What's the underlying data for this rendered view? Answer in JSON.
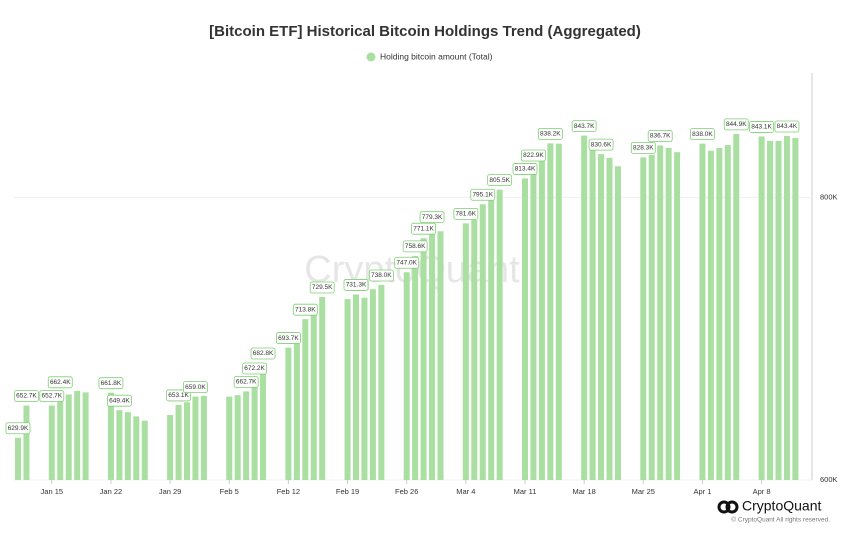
{
  "chart_data": {
    "type": "bar",
    "title": "[Bitcoin ETF] Historical Bitcoin Holdings Trend (Aggregated)",
    "watermark": "CryptoQuant",
    "brand": "CryptoQuant",
    "copyright": "© CryptoQuant All rights reserved.",
    "categories": [
      null,
      null,
      null,
      null,
      "Jan 15",
      null,
      null,
      null,
      null,
      null,
      null,
      "Jan 22",
      null,
      null,
      null,
      null,
      null,
      null,
      "Jan 29",
      null,
      null,
      null,
      null,
      null,
      null,
      "Feb 5",
      null,
      null,
      null,
      null,
      null,
      null,
      "Feb 12",
      null,
      null,
      null,
      null,
      null,
      null,
      "Feb 19",
      null,
      null,
      null,
      null,
      null,
      null,
      "Feb 26",
      null,
      null,
      null,
      null,
      null,
      null,
      "Mar 4",
      null,
      null,
      null,
      null,
      null,
      null,
      "Mar 11",
      null,
      null,
      null,
      null,
      null,
      null,
      "Mar 18",
      null,
      null,
      null,
      null,
      null,
      null,
      "Mar 25",
      null,
      null,
      null,
      null,
      null,
      null,
      "Apr 1",
      null,
      null,
      null,
      null,
      null,
      null,
      "Apr 8",
      null,
      null,
      null,
      null
    ],
    "series": [
      {
        "name": "Holding bitcoin amount (Total)",
        "color": "#a9dfa0",
        "values": [
          629900,
          652700,
          null,
          null,
          652700,
          662400,
          660500,
          663000,
          662000,
          null,
          null,
          661800,
          649400,
          648000,
          645000,
          642000,
          null,
          null,
          646000,
          653100,
          655000,
          659000,
          659500,
          null,
          null,
          659000,
          660000,
          662700,
          672200,
          682800,
          null,
          null,
          693700,
          700000,
          713800,
          720000,
          729500,
          null,
          null,
          728000,
          731300,
          729000,
          735000,
          738000,
          null,
          null,
          747000,
          758600,
          771100,
          779300,
          776000,
          null,
          null,
          781600,
          784000,
          795100,
          800000,
          805500,
          null,
          null,
          813400,
          822900,
          830000,
          838200,
          838000,
          null,
          null,
          843700,
          835000,
          830600,
          828000,
          822000,
          null,
          null,
          828300,
          830000,
          836700,
          835000,
          832000,
          null,
          null,
          838000,
          833000,
          835000,
          837000,
          844900,
          null,
          null,
          843100,
          840000,
          840000,
          843400,
          842000
        ],
        "value_labels": [
          "629.9K",
          "652.7K",
          null,
          null,
          "652.7K",
          "662.4K",
          null,
          null,
          null,
          null,
          null,
          "661.8K",
          "649.4K",
          null,
          null,
          null,
          null,
          null,
          null,
          "653.1K",
          null,
          "659.0K",
          null,
          null,
          null,
          null,
          null,
          "662.7K",
          "672.2K",
          "682.8K",
          null,
          null,
          "693.7K",
          null,
          "713.8K",
          null,
          "729.5K",
          null,
          null,
          null,
          "731.3K",
          null,
          null,
          "738.0K",
          null,
          null,
          "747.0K",
          "758.6K",
          "771.1K",
          "779.3K",
          null,
          null,
          null,
          "781.6K",
          null,
          "795.1K",
          null,
          "805.5K",
          null,
          null,
          "813.4K",
          "822.9K",
          null,
          "838.2K",
          null,
          null,
          null,
          "843.7K",
          null,
          "830.6K",
          null,
          null,
          null,
          null,
          "828.3K",
          null,
          "836.7K",
          null,
          null,
          null,
          null,
          "838.0K",
          null,
          null,
          null,
          "844.9K",
          null,
          null,
          "843.1K",
          null,
          null,
          "843.4K",
          null
        ]
      }
    ],
    "ylim": [
      600000,
      888000
    ],
    "yticks": [
      {
        "value": 600000,
        "label": "600K"
      },
      {
        "value": 800000,
        "label": "800K"
      }
    ],
    "grid": true,
    "legend": "top"
  }
}
